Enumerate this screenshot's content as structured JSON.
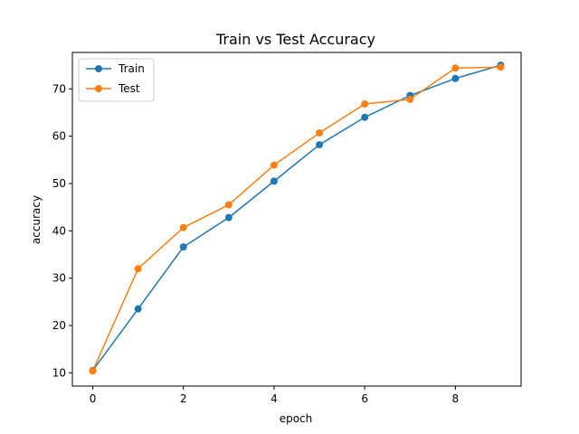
{
  "chart_data": {
    "type": "line",
    "title": "Train vs Test Accuracy",
    "xlabel": "epoch",
    "ylabel": "accuracy",
    "x": [
      0,
      1,
      2,
      3,
      4,
      5,
      6,
      7,
      8,
      9
    ],
    "xlim": [
      -0.45,
      9.45
    ],
    "ylim": [
      7.2,
      77.7
    ],
    "xticks": [
      0,
      2,
      4,
      6,
      8
    ],
    "yticks": [
      10,
      20,
      30,
      40,
      50,
      60,
      70
    ],
    "grid": false,
    "legend_position": "upper-left",
    "series": [
      {
        "name": "Train",
        "color": "#1f77b4",
        "marker": "circle",
        "values": [
          10.5,
          23.5,
          36.6,
          42.8,
          50.5,
          58.2,
          64.0,
          68.6,
          72.2,
          75.0
        ]
      },
      {
        "name": "Test",
        "color": "#ff7f0e",
        "marker": "circle",
        "values": [
          10.4,
          32.0,
          40.7,
          45.5,
          53.9,
          60.7,
          66.8,
          67.8,
          74.4,
          74.6
        ]
      }
    ]
  }
}
